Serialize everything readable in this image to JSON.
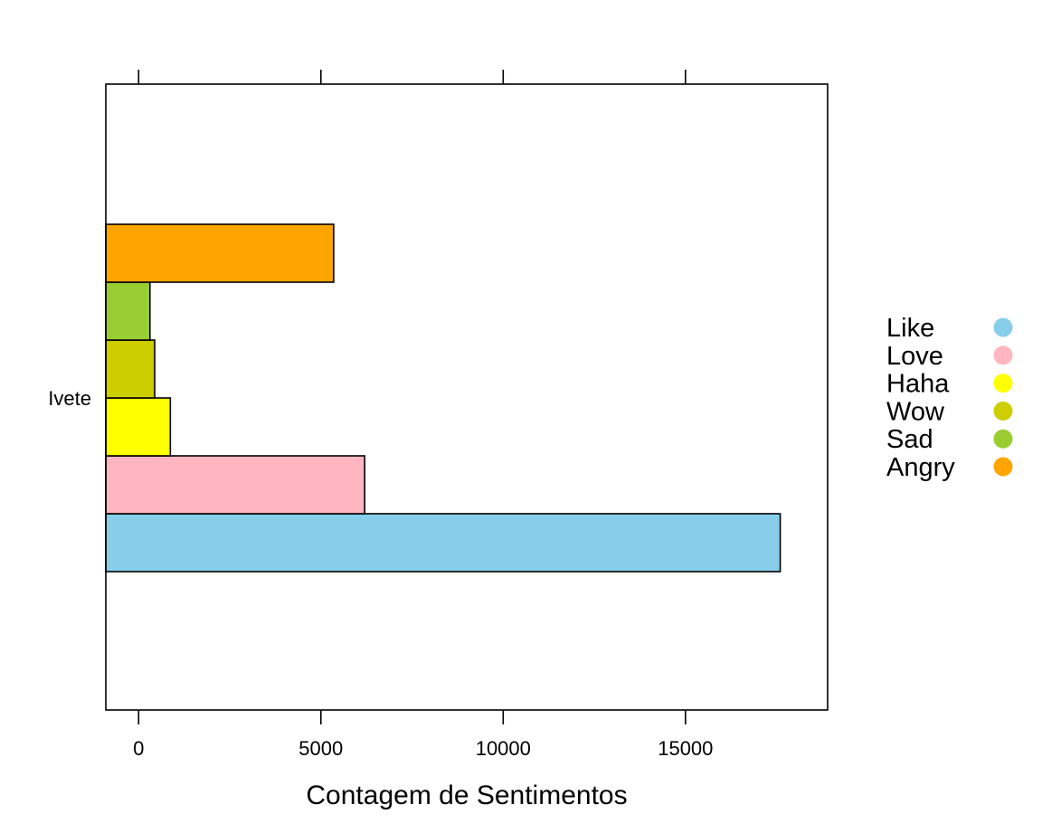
{
  "chart_data": {
    "type": "bar",
    "orientation": "horizontal",
    "categories": [
      "Ivete"
    ],
    "series": [
      {
        "name": "Like",
        "values": [
          17600
        ],
        "color": "#87CEEB"
      },
      {
        "name": "Love",
        "values": [
          6200
        ],
        "color": "#FFB6C1"
      },
      {
        "name": "Haha",
        "values": [
          870
        ],
        "color": "#FFFF00"
      },
      {
        "name": "Wow",
        "values": [
          440
        ],
        "color": "#CDCD00"
      },
      {
        "name": "Sad",
        "values": [
          310
        ],
        "color": "#9ACD32"
      },
      {
        "name": "Angry",
        "values": [
          5350
        ],
        "color": "#FFA500"
      }
    ],
    "xlabel": "Contagem de Sentimentos",
    "ylabel": "",
    "title": "",
    "xlim": [
      -900,
      18900
    ],
    "xticks": [
      0,
      5000,
      10000,
      15000
    ],
    "xtick_labels": [
      "0",
      "5000",
      "10000",
      "15000"
    ],
    "grid": false,
    "legend_position": "right",
    "bar_border_color": "#000000"
  }
}
